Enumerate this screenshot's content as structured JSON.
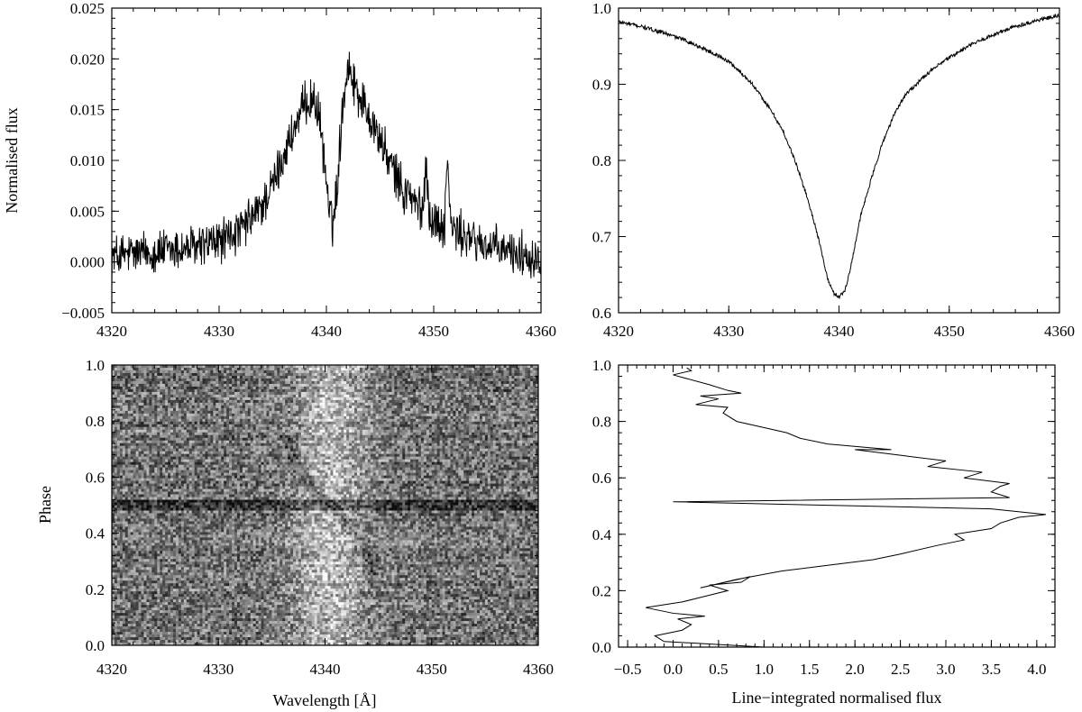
{
  "chart_data": [
    {
      "id": "top-left",
      "type": "line",
      "title": "",
      "xlabel": "",
      "ylabel": "Normalised flux",
      "xlim": [
        4320,
        4360
      ],
      "ylim": [
        -0.005,
        0.025
      ],
      "xticks": [
        4320,
        4330,
        4340,
        4350,
        4360
      ],
      "xtick_labels": [
        "4320",
        "4330",
        "4340",
        "4350",
        "4360"
      ],
      "yticks": [
        -0.005,
        0.0,
        0.005,
        0.01,
        0.015,
        0.02,
        0.025
      ],
      "ytick_labels": [
        "−0.005",
        "0.000",
        "0.005",
        "0.010",
        "0.015",
        "0.020",
        "0.025"
      ],
      "grid": false,
      "series": [
        {
          "x": [
            4320,
            4322,
            4324,
            4326,
            4328,
            4330,
            4332,
            4334,
            4335,
            4336,
            4337,
            4338,
            4338.5,
            4339,
            4339.5,
            4340,
            4340.3,
            4340.6,
            4341,
            4341.5,
            4342,
            4342.5,
            4343,
            4344,
            4345,
            4346,
            4347,
            4347.3,
            4347.6,
            4348,
            4349,
            4349.3,
            4349.6,
            4350,
            4351,
            4351.3,
            4351.6,
            4352,
            4354,
            4356,
            4358,
            4360
          ],
          "y": [
            0.0005,
            0.0008,
            0.001,
            0.0012,
            0.0015,
            0.002,
            0.003,
            0.0055,
            0.0075,
            0.0105,
            0.013,
            0.0155,
            0.016,
            0.0158,
            0.013,
            0.008,
            0.0045,
            0.0038,
            0.0075,
            0.0155,
            0.0195,
            0.018,
            0.0165,
            0.0145,
            0.012,
            0.0095,
            0.0075,
            0.0062,
            0.0075,
            0.006,
            0.005,
            0.0105,
            0.0045,
            0.004,
            0.0035,
            0.0105,
            0.0035,
            0.003,
            0.002,
            0.0012,
            0.0008,
            0.0005
          ]
        }
      ]
    },
    {
      "id": "top-right",
      "type": "line",
      "title": "",
      "xlabel": "",
      "ylabel": "",
      "xlim": [
        4320,
        4360
      ],
      "ylim": [
        0.6,
        1.0
      ],
      "xticks": [
        4320,
        4330,
        4340,
        4350,
        4360
      ],
      "xtick_labels": [
        "4320",
        "4330",
        "4340",
        "4350",
        "4360"
      ],
      "yticks": [
        0.6,
        0.7,
        0.8,
        0.9,
        1.0
      ],
      "ytick_labels": [
        "0.6",
        "0.7",
        "0.8",
        "0.9",
        "1.0"
      ],
      "grid": false,
      "series": [
        {
          "x": [
            4320,
            4322,
            4324,
            4326,
            4328,
            4330,
            4332,
            4334,
            4335,
            4336,
            4337,
            4338,
            4338.5,
            4339,
            4339.5,
            4340,
            4340.5,
            4341,
            4341.5,
            4342,
            4343,
            4344,
            4345,
            4346,
            4348,
            4350,
            4352,
            4354,
            4356,
            4358,
            4360
          ],
          "y": [
            0.982,
            0.976,
            0.968,
            0.958,
            0.945,
            0.93,
            0.903,
            0.862,
            0.836,
            0.8,
            0.757,
            0.706,
            0.674,
            0.643,
            0.626,
            0.621,
            0.628,
            0.655,
            0.693,
            0.729,
            0.779,
            0.825,
            0.86,
            0.886,
            0.914,
            0.935,
            0.952,
            0.965,
            0.976,
            0.984,
            0.99
          ]
        }
      ]
    },
    {
      "id": "bottom-left",
      "type": "heatmap",
      "title": "",
      "xlabel": "Wavelength [Å]",
      "ylabel": "Phase",
      "xlim": [
        4320,
        4360
      ],
      "ylim": [
        0.0,
        1.0
      ],
      "xticks": [
        4320,
        4330,
        4340,
        4350,
        4360
      ],
      "xtick_labels": [
        "4320",
        "4330",
        "4340",
        "4350",
        "4360"
      ],
      "yticks": [
        0.0,
        0.2,
        0.4,
        0.6,
        0.8,
        1.0
      ],
      "ytick_labels": [
        "0.0",
        "0.2",
        "0.4",
        "0.6",
        "0.8",
        "1.0"
      ],
      "grid": false,
      "colormap": "grayscale",
      "features": {
        "emission_center": 4340.5,
        "emission_width": 3.5,
        "s_wave_amplitude": 4,
        "eclipse_phase": 0.5,
        "eclipse_halfwidth": 0.018
      }
    },
    {
      "id": "bottom-right",
      "type": "line",
      "title": "",
      "xlabel": "Line−integrated normalised flux",
      "ylabel": "",
      "xlim": [
        -0.6,
        4.2
      ],
      "ylim": [
        0.0,
        1.0
      ],
      "xticks": [
        -0.5,
        0.0,
        0.5,
        1.0,
        1.5,
        2.0,
        2.5,
        3.0,
        3.5,
        4.0
      ],
      "xtick_labels": [
        "−0.5",
        "0.0",
        "0.5",
        "1.0",
        "1.5",
        "2.0",
        "2.5",
        "3.0",
        "3.5",
        "4.0"
      ],
      "yticks": [
        0.0,
        0.2,
        0.4,
        0.6,
        0.8,
        1.0
      ],
      "ytick_labels": [
        "0.0",
        "0.2",
        "0.4",
        "0.6",
        "0.8",
        "1.0"
      ],
      "grid": false,
      "series": [
        {
          "x": [
            1.0,
            -0.1,
            -0.2,
            0.1,
            0.2,
            0.05,
            0.35,
            0.0,
            -0.3,
            0.1,
            0.35,
            0.6,
            0.4,
            0.75,
            0.85,
            0.3,
            0.7,
            1.2,
            1.7,
            2.2,
            2.5,
            2.9,
            3.2,
            3.1,
            3.5,
            3.6,
            3.8,
            4.1,
            3.5,
            0.0,
            3.7,
            3.5,
            3.6,
            3.7,
            3.2,
            3.4,
            2.8,
            3.0,
            2.5,
            2.0,
            2.4,
            1.7,
            1.4,
            1.25,
            0.7,
            0.55,
            0.6,
            0.25,
            0.5,
            0.3,
            0.75,
            0.6,
            0.4,
            0.0,
            0.2,
            0.15
          ],
          "y": [
            0.0,
            0.02,
            0.04,
            0.06,
            0.08,
            0.1,
            0.11,
            0.12,
            0.14,
            0.16,
            0.18,
            0.2,
            0.22,
            0.23,
            0.25,
            0.21,
            0.24,
            0.27,
            0.29,
            0.31,
            0.33,
            0.36,
            0.38,
            0.4,
            0.42,
            0.44,
            0.46,
            0.47,
            0.49,
            0.515,
            0.53,
            0.55,
            0.57,
            0.58,
            0.6,
            0.62,
            0.64,
            0.66,
            0.68,
            0.7,
            0.7,
            0.72,
            0.74,
            0.76,
            0.8,
            0.83,
            0.85,
            0.86,
            0.88,
            0.89,
            0.9,
            0.91,
            0.93,
            0.965,
            0.98,
            0.99
          ]
        }
      ]
    }
  ]
}
